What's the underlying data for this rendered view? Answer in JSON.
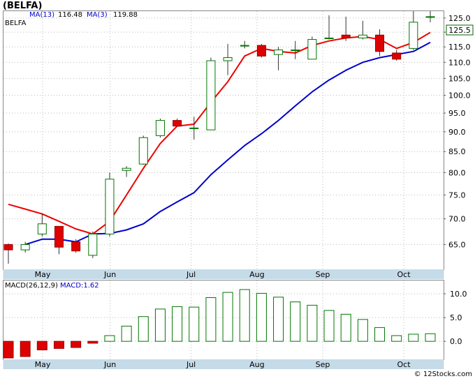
{
  "title": "(BELFA)",
  "credit": "© 12Stocks.com",
  "colors": {
    "up_candle": "#007700",
    "down_candle": "#dd0000",
    "ma13": "#0000cc",
    "ma3": "#ee0000",
    "macd_pos": "#007700",
    "macd_neg": "#dd0000",
    "axis_band": "#c5dbe8",
    "grid": "#bbbbbb"
  },
  "chart_data": [
    {
      "type": "candlestick",
      "legend": [
        {
          "key": "ticker",
          "text": "BELFA",
          "color": "#000000"
        },
        {
          "key": "ma13",
          "text": "MA(13)",
          "value": "116.48",
          "color": "#0000cc"
        },
        {
          "key": "ma3",
          "text": "MA(3)",
          "value": "119.88",
          "color": "#0000cc"
        }
      ],
      "last_price_label": "125.5",
      "x_ticks": [
        {
          "label": "May",
          "index": 1.2
        },
        {
          "label": "Jun",
          "index": 5.2
        },
        {
          "label": "Jul",
          "index": 10.0
        },
        {
          "label": "Aug",
          "index": 13.9
        },
        {
          "label": "Sep",
          "index": 17.8
        },
        {
          "label": "Oct",
          "index": 22.6
        }
      ],
      "y_ticks": [
        65.0,
        70.0,
        75.0,
        80.0,
        85.0,
        90.0,
        95.0,
        100.0,
        105.0,
        110.0,
        115.0,
        120.0,
        125.0
      ],
      "ylim": [
        60.5,
        127.5
      ],
      "y_scale": "log",
      "grid": true,
      "candles": [
        {
          "o": 65.0,
          "h": 65.2,
          "l": 61.5,
          "c": 64.0
        },
        {
          "o": 64.0,
          "h": 65.5,
          "l": 63.5,
          "c": 65.0
        },
        {
          "o": 67.0,
          "h": 71.0,
          "l": 66.5,
          "c": 69.0
        },
        {
          "o": 68.5,
          "h": 68.5,
          "l": 63.2,
          "c": 64.5
        },
        {
          "o": 65.5,
          "h": 66.0,
          "l": 63.5,
          "c": 63.8
        },
        {
          "o": 63.0,
          "h": 67.5,
          "l": 62.5,
          "c": 67.0
        },
        {
          "o": 67.0,
          "h": 80.0,
          "l": 66.5,
          "c": 78.5
        },
        {
          "o": 80.5,
          "h": 81.5,
          "l": 79.0,
          "c": 81.0
        },
        {
          "o": 82.0,
          "h": 89.0,
          "l": 81.8,
          "c": 88.5
        },
        {
          "o": 89.0,
          "h": 93.5,
          "l": 88.5,
          "c": 93.0
        },
        {
          "o": 93.0,
          "h": 93.5,
          "l": 91.5,
          "c": 91.5
        },
        {
          "o": 91.0,
          "h": 94.0,
          "l": 88.0,
          "c": 91.0
        },
        {
          "o": 90.5,
          "h": 111.5,
          "l": 90.5,
          "c": 110.5
        },
        {
          "o": 110.5,
          "h": 116.0,
          "l": 106.0,
          "c": 111.5
        },
        {
          "o": 115.5,
          "h": 117.0,
          "l": 114.5,
          "c": 115.5
        },
        {
          "o": 115.5,
          "h": 116.0,
          "l": 111.5,
          "c": 112.0
        },
        {
          "o": 112.5,
          "h": 115.0,
          "l": 107.5,
          "c": 114.0
        },
        {
          "o": 114.0,
          "h": 117.0,
          "l": 111.0,
          "c": 114.0
        },
        {
          "o": 111.0,
          "h": 118.5,
          "l": 111.0,
          "c": 117.5
        },
        {
          "o": 118.0,
          "h": 126.0,
          "l": 117.5,
          "c": 118.0
        },
        {
          "o": 119.0,
          "h": 125.5,
          "l": 117.0,
          "c": 118.0
        },
        {
          "o": 118.0,
          "h": 124.0,
          "l": 117.5,
          "c": 119.0
        },
        {
          "o": 119.0,
          "h": 121.0,
          "l": 112.0,
          "c": 113.5
        },
        {
          "o": 113.0,
          "h": 114.0,
          "l": 110.5,
          "c": 111.0
        },
        {
          "o": 114.5,
          "h": 127.5,
          "l": 114.0,
          "c": 123.5
        },
        {
          "o": 125.5,
          "h": 127.5,
          "l": 123.5,
          "c": 125.5
        }
      ],
      "series": [
        {
          "name": "MA(13)",
          "color": "#0000cc",
          "values": [
            null,
            65.0,
            66.0,
            66.0,
            65.5,
            67.0,
            67.1,
            67.8,
            69.0,
            71.5,
            73.5,
            75.5,
            79.5,
            83.0,
            86.5,
            89.5,
            93.0,
            97.0,
            101.0,
            104.5,
            107.5,
            110.0,
            111.5,
            112.5,
            113.5,
            116.5
          ]
        },
        {
          "name": "MA(3)",
          "color": "#ee0000",
          "values": [
            73.0,
            72.0,
            71.0,
            69.5,
            68.0,
            67.0,
            69.5,
            75.0,
            81.0,
            87.0,
            91.5,
            92.0,
            98.0,
            104.0,
            112.0,
            114.5,
            113.5,
            113.0,
            115.5,
            117.0,
            118.0,
            118.5,
            117.5,
            114.5,
            116.5,
            119.9
          ]
        }
      ]
    },
    {
      "type": "bar",
      "legend": [
        {
          "key": "macd_params",
          "text": "MACD(26,12,9)",
          "color": "#000000"
        },
        {
          "key": "macd_value",
          "text": "MACD:1.62",
          "color": "#0000cc"
        }
      ],
      "y_ticks": [
        0.0,
        5.0,
        10.0
      ],
      "ylim": [
        -3.8,
        12.8
      ],
      "values": [
        -3.5,
        -3.2,
        -1.8,
        -1.5,
        -1.3,
        -0.4,
        1.2,
        3.2,
        5.2,
        6.8,
        7.3,
        7.2,
        9.2,
        10.3,
        10.9,
        10.1,
        9.3,
        8.3,
        7.6,
        6.5,
        5.7,
        4.6,
        2.9,
        1.2,
        1.5,
        1.6
      ],
      "grid": true
    }
  ]
}
